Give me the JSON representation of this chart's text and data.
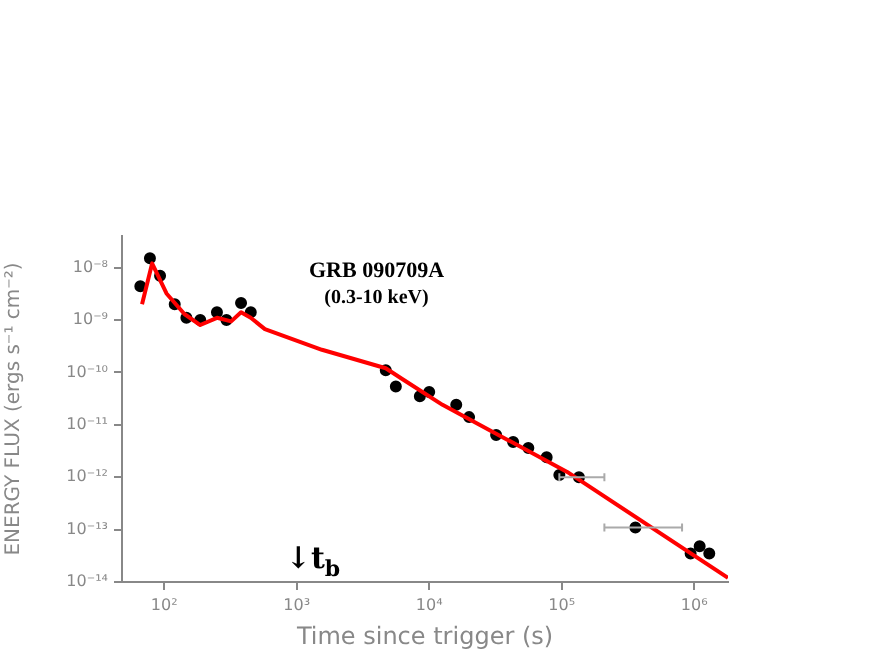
{
  "chart_data": {
    "type": "scatter",
    "title": "GRB 090709A",
    "subtitle": "(0.3-10 keV)",
    "xlabel": "Time since trigger (s)",
    "ylabel": "ENERGY FLUX (ergs s⁻¹ cm⁻²)",
    "log": "xy",
    "grid": false,
    "legend": false,
    "xlim": [
      48,
      1800000
    ],
    "ylim": [
      1e-14,
      4e-08
    ],
    "xticks": [
      {
        "value": 100,
        "label": "10²"
      },
      {
        "value": 1000,
        "label": "10³"
      },
      {
        "value": 10000,
        "label": "10⁴"
      },
      {
        "value": 100000,
        "label": "10⁵"
      },
      {
        "value": 1000000,
        "label": "10⁶"
      }
    ],
    "yticks": [
      {
        "value": 1e-08,
        "label": "10⁻⁸"
      },
      {
        "value": 1e-09,
        "label": "10⁻⁹"
      },
      {
        "value": 1e-10,
        "label": "10⁻¹⁰"
      },
      {
        "value": 1e-11,
        "label": "10⁻¹¹"
      },
      {
        "value": 1e-12,
        "label": "10⁻¹²"
      },
      {
        "value": 1e-13,
        "label": "10⁻¹³"
      },
      {
        "value": 1e-14,
        "label": "10⁻¹⁴"
      }
    ],
    "annotations": [
      "↓t$_{b}$"
    ],
    "series": [
      {
        "marker": "circle",
        "color": "#000000",
        "x": [
          66,
          78,
          93,
          120,
          147,
          187,
          250,
          295,
          380,
          450,
          4700,
          5600,
          8500,
          10000,
          16000,
          20000,
          32000,
          43000,
          56000,
          77000,
          96000,
          135000,
          360000,
          940000,
          1100000,
          1300000
        ],
        "values": [
          4.4e-09,
          1.5e-08,
          7e-09,
          2e-09,
          1.1e-09,
          1e-09,
          1.4e-09,
          1e-09,
          2.1e-09,
          1.4e-09,
          1.1e-10,
          5.4e-11,
          3.5e-11,
          4.2e-11,
          2.4e-11,
          1.4e-11,
          6.4e-12,
          4.7e-12,
          3.6e-12,
          2.4e-12,
          1.1e-12,
          1e-12,
          1.1e-13,
          3.5e-14,
          4.8e-14,
          3.5e-14
        ],
        "xerrors": [
          null,
          null,
          null,
          null,
          null,
          null,
          null,
          null,
          null,
          null,
          null,
          null,
          null,
          null,
          null,
          null,
          null,
          null,
          null,
          null,
          null,
          [
            96000,
            210000
          ],
          [
            210000,
            810000
          ],
          null,
          null,
          null
        ]
      },
      {
        "type": "line",
        "marker": "none",
        "line_style": "solid",
        "color": "#ff0000",
        "x": [
          68,
          81,
          104,
          142,
          187,
          250,
          320,
          380,
          450,
          575,
          1550,
          4700,
          6300,
          12600,
          110000,
          1800000
        ],
        "values": [
          2e-09,
          1.2e-08,
          3.2e-09,
          1.3e-09,
          8e-10,
          1.1e-09,
          9.4e-10,
          1.4e-09,
          1.1e-09,
          6.7e-10,
          2.7e-10,
          1.2e-10,
          7.4e-11,
          2.4e-11,
          1.26e-12,
          1.2e-14
        ]
      }
    ]
  }
}
